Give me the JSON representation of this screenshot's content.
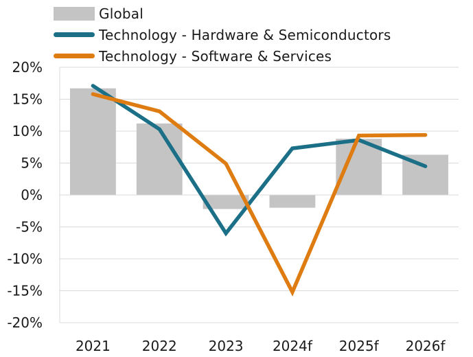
{
  "chart_data": {
    "type": "bar+line",
    "title": "",
    "xlabel": "",
    "ylabel": "",
    "categories": [
      "2021",
      "2022",
      "2023",
      "2024f",
      "2025f",
      "2026f"
    ],
    "ylim": [
      -20,
      20
    ],
    "yticks": [
      20,
      15,
      10,
      5,
      0,
      -5,
      -10,
      -15,
      -20
    ],
    "ytick_labels": [
      "20%",
      "15%",
      "10%",
      "5%",
      "0%",
      "-5%",
      "-10%",
      "-15%",
      "-20%"
    ],
    "grid": true,
    "legend_position": "top-left",
    "series": [
      {
        "name": "Global",
        "kind": "bar",
        "color": "#c4c4c4",
        "values": [
          16.7,
          11.2,
          -2.2,
          -2.0,
          8.8,
          6.3
        ]
      },
      {
        "name": "Technology - Hardware & Semiconductors",
        "kind": "line",
        "color": "#1b6f87",
        "values": [
          17.1,
          10.3,
          -6.0,
          7.3,
          8.6,
          4.5
        ]
      },
      {
        "name": "Technology - Software & Services",
        "kind": "line",
        "color": "#de7c11",
        "values": [
          15.8,
          13.1,
          4.9,
          -15.2,
          9.3,
          9.4
        ]
      }
    ]
  }
}
